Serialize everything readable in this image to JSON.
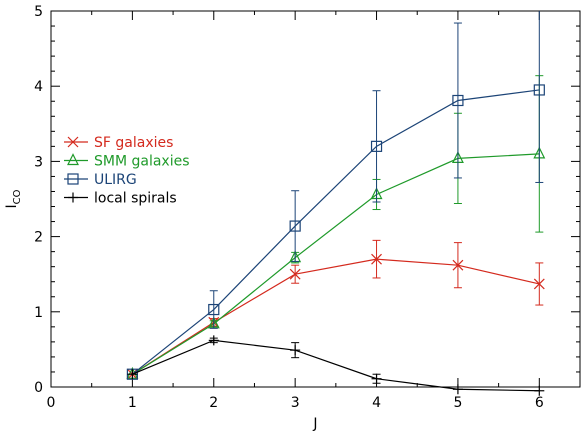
{
  "chart_data": {
    "type": "line",
    "title": "",
    "xlabel": "J",
    "ylabel": "I",
    "ylabel_sub": "CO",
    "xlim": [
      0,
      6.5
    ],
    "ylim": [
      0,
      5
    ],
    "xticks": [
      "0",
      "1",
      "2",
      "3",
      "4",
      "5",
      "6"
    ],
    "yticks": [
      "0",
      "1",
      "2",
      "3",
      "4",
      "5"
    ],
    "grid": false,
    "legend_position": "left",
    "series": [
      {
        "name": "SF galaxies",
        "color": "#d42a1e",
        "marker": "x",
        "x": [
          1,
          2,
          3,
          4,
          5,
          6
        ],
        "y": [
          0.17,
          0.86,
          1.5,
          1.7,
          1.62,
          1.37
        ],
        "yerr": [
          0,
          0.05,
          0.12,
          0.25,
          0.3,
          0.28
        ]
      },
      {
        "name": "SMM galaxies",
        "color": "#1f9a2a",
        "marker": "triangle",
        "x": [
          1,
          2,
          3,
          4,
          5,
          6
        ],
        "y": [
          0.17,
          0.84,
          1.72,
          2.56,
          3.04,
          3.1
        ],
        "yerr": [
          0,
          0.04,
          0.07,
          0.2,
          0.6,
          1.04
        ]
      },
      {
        "name": "ULIRG",
        "color": "#1c4477",
        "marker": "square",
        "x": [
          1,
          2,
          3,
          4,
          5,
          6
        ],
        "y": [
          0.17,
          1.03,
          2.14,
          3.2,
          3.81,
          3.95
        ],
        "yerr": [
          0,
          0.25,
          0.47,
          0.74,
          1.03,
          1.23
        ]
      },
      {
        "name": "local spirals",
        "color": "#000000",
        "marker": "plus",
        "x": [
          1,
          2,
          3,
          4,
          5,
          6
        ],
        "y": [
          0.17,
          0.62,
          0.49,
          0.11,
          -0.03,
          -0.05
        ],
        "yerr": [
          0,
          0.03,
          0.1,
          0.06,
          0,
          0
        ]
      }
    ]
  }
}
